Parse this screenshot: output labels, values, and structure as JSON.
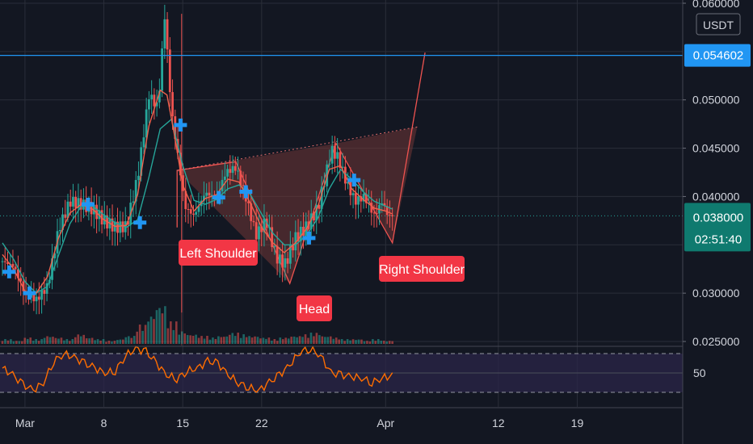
{
  "chart_data": {
    "type": "candlestick",
    "quote_currency": "USDT",
    "price_axis": {
      "ticks": [
        "0.060000",
        "0.050000",
        "0.045000",
        "0.040000",
        "0.030000",
        "0.025000"
      ],
      "range": [
        0.0245,
        0.0612
      ]
    },
    "rsi_axis": {
      "tick": "50",
      "levels": [
        30,
        50,
        70
      ]
    },
    "time_axis": {
      "ticks": [
        "Mar",
        "8",
        "15",
        "22",
        "Apr",
        "12",
        "19"
      ]
    },
    "horizontal_level": {
      "label": "0.054602",
      "value": 0.054602
    },
    "last_price": {
      "label": "0.038000",
      "value": 0.038,
      "countdown": "02:51:40"
    },
    "pattern": {
      "labels": {
        "left": "Left Shoulder",
        "head": "Head",
        "right": "Right Shoulder"
      },
      "vertices": [
        {
          "day": 15.5,
          "price": 0.0368
        },
        {
          "day": 15.5,
          "price": 0.0427
        },
        {
          "day": 20.7,
          "price": 0.0436
        },
        {
          "day": 25.5,
          "price": 0.031
        },
        {
          "day": 29.6,
          "price": 0.0455
        },
        {
          "day": 34.6,
          "price": 0.0352
        },
        {
          "day": 37.5,
          "price": 0.0549
        }
      ],
      "neckline_end": {
        "day": 36.8,
        "price": 0.0472
      }
    },
    "price_series": [
      {
        "day": 0,
        "price": 0.0333
      },
      {
        "day": 1,
        "price": 0.0328
      },
      {
        "day": 2,
        "price": 0.03
      },
      {
        "day": 3,
        "price": 0.0293
      },
      {
        "day": 4,
        "price": 0.0307
      },
      {
        "day": 5,
        "price": 0.0367
      },
      {
        "day": 6,
        "price": 0.0395
      },
      {
        "day": 7,
        "price": 0.0392
      },
      {
        "day": 8,
        "price": 0.0387
      },
      {
        "day": 9,
        "price": 0.0375
      },
      {
        "day": 10,
        "price": 0.0368
      },
      {
        "day": 11,
        "price": 0.0369
      },
      {
        "day": 12,
        "price": 0.042
      },
      {
        "day": 13,
        "price": 0.0505
      },
      {
        "day": 13.8,
        "price": 0.0492
      },
      {
        "day": 14.4,
        "price": 0.0587
      },
      {
        "day": 15,
        "price": 0.0488
      },
      {
        "day": 15.6,
        "price": 0.044
      },
      {
        "day": 16.2,
        "price": 0.0389
      },
      {
        "day": 17,
        "price": 0.038
      },
      {
        "day": 18,
        "price": 0.0404
      },
      {
        "day": 19,
        "price": 0.0398
      },
      {
        "day": 19.8,
        "price": 0.0425
      },
      {
        "day": 20.7,
        "price": 0.043
      },
      {
        "day": 21.5,
        "price": 0.0403
      },
      {
        "day": 22.5,
        "price": 0.036
      },
      {
        "day": 23.4,
        "price": 0.0375
      },
      {
        "day": 24.3,
        "price": 0.0337
      },
      {
        "day": 25.1,
        "price": 0.033
      },
      {
        "day": 26,
        "price": 0.0357
      },
      {
        "day": 27,
        "price": 0.0369
      },
      {
        "day": 28,
        "price": 0.0388
      },
      {
        "day": 29.2,
        "price": 0.0448
      },
      {
        "day": 29.8,
        "price": 0.044
      },
      {
        "day": 30.5,
        "price": 0.0415
      },
      {
        "day": 31.3,
        "price": 0.0395
      },
      {
        "day": 32.1,
        "price": 0.04
      },
      {
        "day": 33,
        "price": 0.038
      },
      {
        "day": 33.7,
        "price": 0.0395
      },
      {
        "day": 34.2,
        "price": 0.038
      },
      {
        "day": 34.6,
        "price": 0.038
      }
    ],
    "fast_ma": [
      {
        "day": 0,
        "price": 0.034
      },
      {
        "day": 1,
        "price": 0.0325
      },
      {
        "day": 2,
        "price": 0.0302
      },
      {
        "day": 3,
        "price": 0.03
      },
      {
        "day": 4,
        "price": 0.0317
      },
      {
        "day": 5,
        "price": 0.0358
      },
      {
        "day": 6,
        "price": 0.0383
      },
      {
        "day": 7,
        "price": 0.0392
      },
      {
        "day": 8,
        "price": 0.0387
      },
      {
        "day": 9,
        "price": 0.0376
      },
      {
        "day": 10,
        "price": 0.0369
      },
      {
        "day": 11,
        "price": 0.037
      },
      {
        "day": 12,
        "price": 0.0402
      },
      {
        "day": 13,
        "price": 0.0473
      },
      {
        "day": 14,
        "price": 0.051
      },
      {
        "day": 14.6,
        "price": 0.0505
      },
      {
        "day": 15.2,
        "price": 0.0468
      },
      {
        "day": 16,
        "price": 0.0412
      },
      {
        "day": 17,
        "price": 0.0385
      },
      {
        "day": 18,
        "price": 0.0398
      },
      {
        "day": 19,
        "price": 0.0402
      },
      {
        "day": 20,
        "price": 0.0418
      },
      {
        "day": 21,
        "price": 0.0415
      },
      {
        "day": 22,
        "price": 0.0393
      },
      {
        "day": 23,
        "price": 0.0368
      },
      {
        "day": 24,
        "price": 0.0352
      },
      {
        "day": 25,
        "price": 0.0342
      },
      {
        "day": 26,
        "price": 0.0352
      },
      {
        "day": 27,
        "price": 0.0367
      },
      {
        "day": 28,
        "price": 0.039
      },
      {
        "day": 29,
        "price": 0.0428
      },
      {
        "day": 30,
        "price": 0.0432
      },
      {
        "day": 31,
        "price": 0.0408
      },
      {
        "day": 32,
        "price": 0.0397
      },
      {
        "day": 33,
        "price": 0.0388
      },
      {
        "day": 34,
        "price": 0.0385
      },
      {
        "day": 34.6,
        "price": 0.0382
      }
    ],
    "slow_ma": [
      {
        "day": 0,
        "price": 0.0352
      },
      {
        "day": 1,
        "price": 0.0335
      },
      {
        "day": 2,
        "price": 0.0312
      },
      {
        "day": 3,
        "price": 0.03
      },
      {
        "day": 4,
        "price": 0.0307
      },
      {
        "day": 5,
        "price": 0.034
      },
      {
        "day": 6,
        "price": 0.0372
      },
      {
        "day": 7,
        "price": 0.039
      },
      {
        "day": 8,
        "price": 0.039
      },
      {
        "day": 9,
        "price": 0.0381
      },
      {
        "day": 10,
        "price": 0.0373
      },
      {
        "day": 11,
        "price": 0.0368
      },
      {
        "day": 12,
        "price": 0.0376
      },
      {
        "day": 13,
        "price": 0.042
      },
      {
        "day": 14,
        "price": 0.047
      },
      {
        "day": 15,
        "price": 0.048
      },
      {
        "day": 16,
        "price": 0.0432
      },
      {
        "day": 17,
        "price": 0.0396
      },
      {
        "day": 18,
        "price": 0.0392
      },
      {
        "day": 19,
        "price": 0.0397
      },
      {
        "day": 20,
        "price": 0.0408
      },
      {
        "day": 21,
        "price": 0.0412
      },
      {
        "day": 22,
        "price": 0.0402
      },
      {
        "day": 23,
        "price": 0.0382
      },
      {
        "day": 24,
        "price": 0.0362
      },
      {
        "day": 25,
        "price": 0.035
      },
      {
        "day": 26,
        "price": 0.035
      },
      {
        "day": 27,
        "price": 0.036
      },
      {
        "day": 28,
        "price": 0.0378
      },
      {
        "day": 29,
        "price": 0.0408
      },
      {
        "day": 30,
        "price": 0.0428
      },
      {
        "day": 31,
        "price": 0.0418
      },
      {
        "day": 32,
        "price": 0.0405
      },
      {
        "day": 33,
        "price": 0.0395
      },
      {
        "day": 34,
        "price": 0.039
      },
      {
        "day": 34.6,
        "price": 0.0387
      }
    ],
    "signal_markers": [
      {
        "day": 0.6,
        "price": 0.0322
      },
      {
        "day": 2.4,
        "price": 0.03
      },
      {
        "day": 7.6,
        "price": 0.0392
      },
      {
        "day": 12.2,
        "price": 0.0373
      },
      {
        "day": 15.8,
        "price": 0.0474
      },
      {
        "day": 19.2,
        "price": 0.0399
      },
      {
        "day": 21.6,
        "price": 0.0405
      },
      {
        "day": 27.2,
        "price": 0.0357
      },
      {
        "day": 31.2,
        "price": 0.0417
      }
    ],
    "rsi_series": [
      55,
      48,
      38,
      32,
      40,
      62,
      70,
      66,
      60,
      55,
      50,
      52,
      68,
      75,
      72,
      60,
      48,
      44,
      52,
      55,
      62,
      60,
      48,
      40,
      35,
      32,
      40,
      48,
      58,
      72,
      75,
      68,
      50,
      48,
      46,
      45,
      40,
      45,
      47
    ],
    "volume_series": [
      3,
      2,
      4,
      3,
      5,
      4,
      3,
      6,
      4,
      3,
      2,
      3,
      5,
      12,
      18,
      24,
      14,
      8,
      6,
      5,
      4,
      5,
      7,
      6,
      5,
      4,
      3,
      4,
      5,
      6,
      7,
      5,
      4,
      3,
      3,
      2,
      3,
      2,
      2
    ],
    "colors": {
      "background": "#131722",
      "grid": "#2a2e39",
      "up": "#26a69a",
      "down": "#ef5350",
      "fast_ma": "#f0624d",
      "slow_ma": "#26a69a",
      "marker": "#2196f3",
      "level_line": "#2196f3",
      "rsi_line": "#ff6d00",
      "rsi_band": "#2b2548",
      "pattern_fill": "#7a3a38",
      "pattern_line": "#ef5350",
      "label_bg": "#f23645",
      "last_price_bg": "#0f7a6f"
    }
  }
}
